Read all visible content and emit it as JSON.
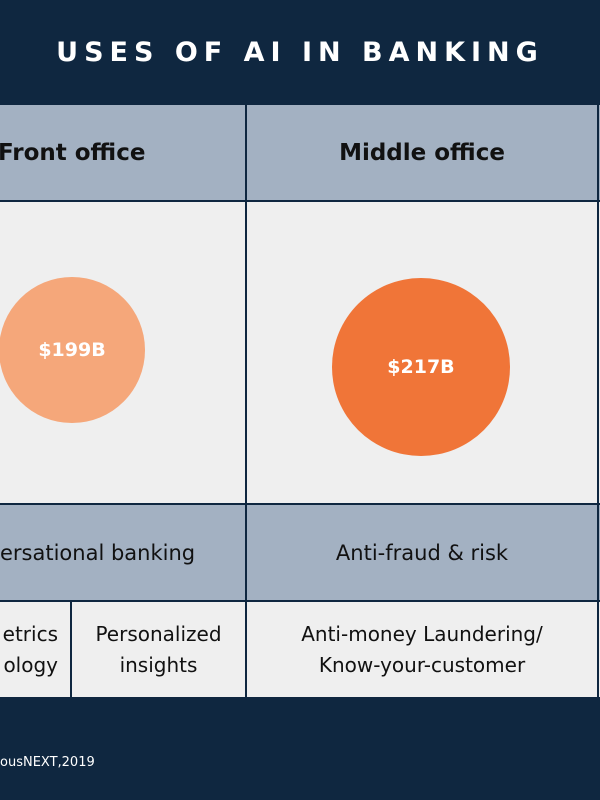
{
  "title": "USES OF AI IN BANKING",
  "columns": [
    {
      "header": "Front office",
      "bubble": {
        "value": 199,
        "label": "$199B"
      },
      "use_case": "ersational banking",
      "examples": [
        [
          "etrics",
          "ology"
        ],
        [
          "Personalized",
          "insights"
        ]
      ]
    },
    {
      "header": "Middle office",
      "bubble": {
        "value": 217,
        "label": "$217B"
      },
      "use_case": "Anti-fraud & risk",
      "examples": [
        [
          "Anti-money Laundering/",
          "Know-your-customer"
        ]
      ]
    }
  ],
  "source": "ousNEXT,2019"
}
